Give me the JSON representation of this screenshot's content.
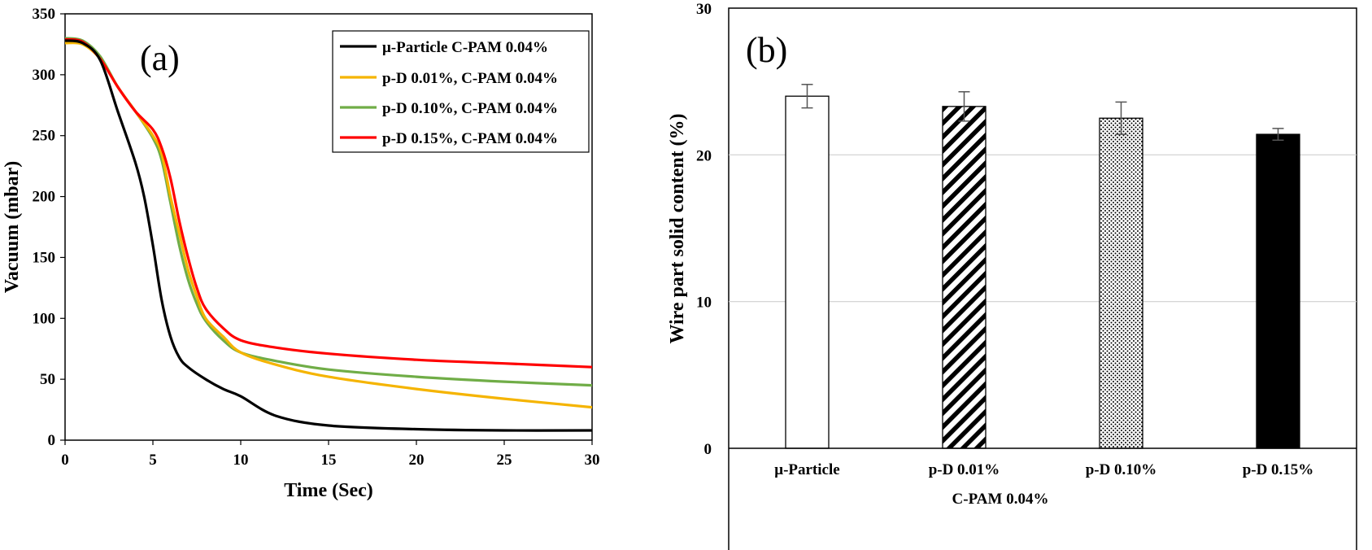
{
  "chart_data": [
    {
      "type": "line",
      "panel_label": "(a)",
      "xlabel": "Time (Sec)",
      "ylabel": "Vacuum (mbar)",
      "xlim": [
        0,
        30
      ],
      "ylim": [
        0,
        350
      ],
      "xticks": [
        "0",
        "5",
        "10",
        "15",
        "20",
        "25",
        "30"
      ],
      "yticks": [
        "0",
        "50",
        "100",
        "150",
        "200",
        "250",
        "300",
        "350"
      ],
      "grid": false,
      "legend_position": "top-right",
      "series": [
        {
          "name": "μ-Particle C-PAM 0.04%",
          "color": "#000000",
          "x": [
            0,
            1,
            2,
            3,
            4,
            4.5,
            5,
            5.5,
            6,
            6.5,
            7,
            8,
            9,
            10,
            12,
            15,
            20,
            25,
            30
          ],
          "y": [
            328,
            326,
            312,
            270,
            228,
            200,
            160,
            115,
            85,
            68,
            60,
            50,
            42,
            36,
            20,
            12,
            9,
            8,
            8
          ]
        },
        {
          "name": "p-D 0.01%, C-PAM 0.04%",
          "color": "#f5b400",
          "x": [
            0,
            1,
            2,
            3,
            4,
            5,
            5.5,
            6,
            6.5,
            7,
            7.5,
            8,
            9,
            10,
            12,
            15,
            20,
            25,
            30
          ],
          "y": [
            326,
            325,
            313,
            290,
            270,
            250,
            235,
            200,
            170,
            140,
            118,
            100,
            85,
            72,
            62,
            52,
            42,
            34,
            27
          ]
        },
        {
          "name": "p-D 0.10%, C-PAM 0.04%",
          "color": "#70ad47",
          "x": [
            0,
            1,
            2,
            3,
            4,
            5,
            5.5,
            6,
            6.5,
            7,
            7.5,
            8,
            9,
            10,
            12,
            15,
            20,
            25,
            30
          ],
          "y": [
            330,
            328,
            315,
            290,
            270,
            248,
            230,
            195,
            160,
            132,
            112,
            98,
            82,
            72,
            65,
            58,
            52,
            48,
            45
          ]
        },
        {
          "name": "p-D 0.15%, C-PAM 0.04%",
          "color": "#ff0000",
          "x": [
            0,
            1,
            2,
            3,
            4,
            5,
            5.5,
            6,
            6.5,
            7,
            7.5,
            8,
            9,
            10,
            12,
            15,
            20,
            25,
            30
          ],
          "y": [
            329,
            327,
            313,
            290,
            270,
            255,
            240,
            215,
            180,
            150,
            125,
            108,
            92,
            82,
            76,
            71,
            66,
            63,
            60
          ]
        }
      ]
    },
    {
      "type": "bar",
      "panel_label": "(b)",
      "ylabel": "Wire part solid content (%)",
      "xlabel": "C-PAM 0.04%",
      "ylim": [
        0,
        30
      ],
      "yticks": [
        "0",
        "10",
        "20",
        "30"
      ],
      "grid": true,
      "categories": [
        "μ-Particle",
        "p-D 0.01%",
        "p-D 0.10%",
        "p-D 0.15%"
      ],
      "values": [
        24.0,
        23.3,
        22.5,
        21.4
      ],
      "errors": [
        0.8,
        1.0,
        1.1,
        0.4
      ],
      "fills": [
        "white",
        "diagonal-hatch",
        "dots",
        "black"
      ]
    }
  ]
}
